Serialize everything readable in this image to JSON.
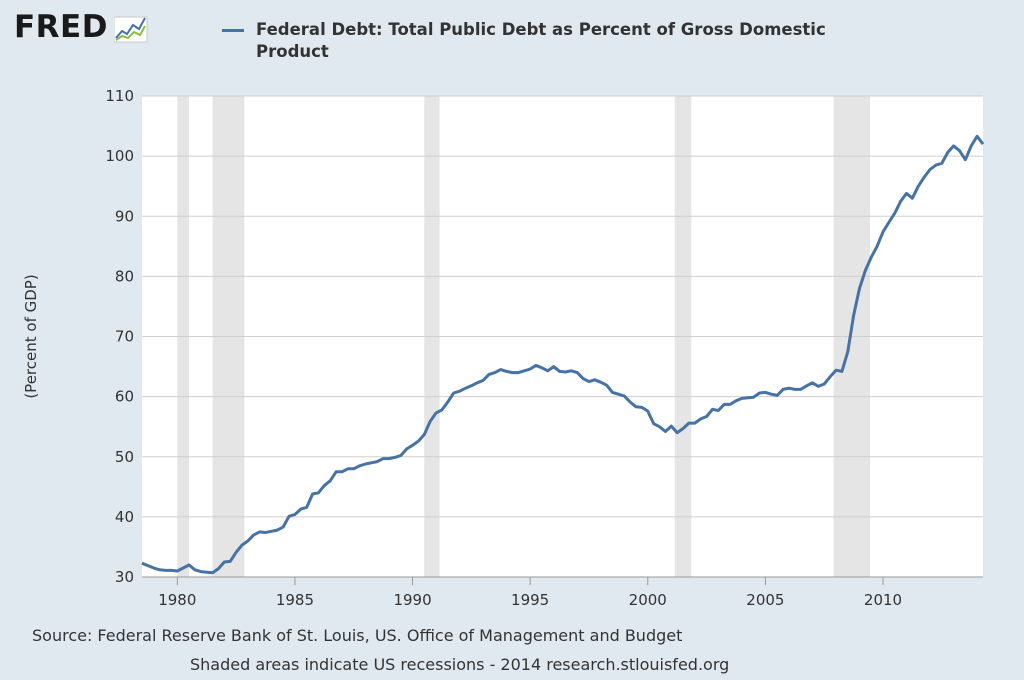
{
  "logo": {
    "text": "FRED",
    "icon": "fred-chart-icon"
  },
  "chart_data": {
    "type": "line",
    "title": "",
    "xlabel": "",
    "ylabel": "(Percent of GDP)",
    "ylim": [
      30,
      110
    ],
    "xlim": [
      1978.5,
      2014.25
    ],
    "yticks": [
      30,
      40,
      50,
      60,
      70,
      80,
      90,
      100,
      110
    ],
    "xticks": [
      1980,
      1985,
      1990,
      1995,
      2000,
      2005,
      2010
    ],
    "grid": "horizontal",
    "legend_position": "top",
    "colors": {
      "line": "#4572a7",
      "recession": "#e5e5e5",
      "plot_bg": "#ffffff",
      "grid": "#cfcfcf"
    },
    "recessions": [
      [
        1980.0,
        1980.5
      ],
      [
        1981.5,
        1982.85
      ],
      [
        1990.5,
        1991.15
      ],
      [
        2001.15,
        2001.85
      ],
      [
        2007.9,
        2009.45
      ]
    ],
    "series": [
      {
        "name": "Federal Debt: Total Public Debt as Percent of Gross Domestic Product",
        "x": [
          1978.5,
          1978.75,
          1979.0,
          1979.25,
          1979.5,
          1979.75,
          1980.0,
          1980.25,
          1980.5,
          1980.75,
          1981.0,
          1981.25,
          1981.5,
          1981.75,
          1982.0,
          1982.25,
          1982.5,
          1982.75,
          1983.0,
          1983.25,
          1983.5,
          1983.75,
          1984.0,
          1984.25,
          1984.5,
          1984.75,
          1985.0,
          1985.25,
          1985.5,
          1985.75,
          1986.0,
          1986.25,
          1986.5,
          1986.75,
          1987.0,
          1987.25,
          1987.5,
          1987.75,
          1988.0,
          1988.25,
          1988.5,
          1988.75,
          1989.0,
          1989.25,
          1989.5,
          1989.75,
          1990.0,
          1990.25,
          1990.5,
          1990.75,
          1991.0,
          1991.25,
          1991.5,
          1991.75,
          1992.0,
          1992.25,
          1992.5,
          1992.75,
          1993.0,
          1993.25,
          1993.5,
          1993.75,
          1994.0,
          1994.25,
          1994.5,
          1994.75,
          1995.0,
          1995.25,
          1995.5,
          1995.75,
          1996.0,
          1996.25,
          1996.5,
          1996.75,
          1997.0,
          1997.25,
          1997.5,
          1997.75,
          1998.0,
          1998.25,
          1998.5,
          1998.75,
          1999.0,
          1999.25,
          1999.5,
          1999.75,
          2000.0,
          2000.25,
          2000.5,
          2000.75,
          2001.0,
          2001.25,
          2001.5,
          2001.75,
          2002.0,
          2002.25,
          2002.5,
          2002.75,
          2003.0,
          2003.25,
          2003.5,
          2003.75,
          2004.0,
          2004.25,
          2004.5,
          2004.75,
          2005.0,
          2005.25,
          2005.5,
          2005.75,
          2006.0,
          2006.25,
          2006.5,
          2006.75,
          2007.0,
          2007.25,
          2007.5,
          2007.75,
          2008.0,
          2008.25,
          2008.5,
          2008.75,
          2009.0,
          2009.25,
          2009.5,
          2009.75,
          2010.0,
          2010.25,
          2010.5,
          2010.75,
          2011.0,
          2011.25,
          2011.5,
          2011.75,
          2012.0,
          2012.25,
          2012.5,
          2012.75,
          2013.0,
          2013.25,
          2013.5,
          2013.75,
          2014.0,
          2014.25
        ],
        "values": [
          32.3,
          31.9,
          31.5,
          31.2,
          31.1,
          31.1,
          31.0,
          31.5,
          32.0,
          31.2,
          30.9,
          30.8,
          30.7,
          31.4,
          32.5,
          32.6,
          34.1,
          35.3,
          36.0,
          37.0,
          37.5,
          37.4,
          37.6,
          37.8,
          38.3,
          40.1,
          40.4,
          41.3,
          41.6,
          43.8,
          44.0,
          45.2,
          46.0,
          47.5,
          47.5,
          48.0,
          48.0,
          48.5,
          48.8,
          49.0,
          49.2,
          49.7,
          49.7,
          49.9,
          50.2,
          51.3,
          51.9,
          52.6,
          53.7,
          55.9,
          57.3,
          57.8,
          59.1,
          60.6,
          60.9,
          61.4,
          61.8,
          62.3,
          62.7,
          63.7,
          64.0,
          64.5,
          64.2,
          64.0,
          64.0,
          64.3,
          64.6,
          65.2,
          64.8,
          64.3,
          65.0,
          64.2,
          64.1,
          64.3,
          64.0,
          63.0,
          62.5,
          62.8,
          62.4,
          61.9,
          60.7,
          60.4,
          60.1,
          59.1,
          58.3,
          58.2,
          57.6,
          55.5,
          55.0,
          54.2,
          55.1,
          54.0,
          54.7,
          55.6,
          55.6,
          56.3,
          56.7,
          57.9,
          57.7,
          58.7,
          58.7,
          59.3,
          59.7,
          59.8,
          59.9,
          60.6,
          60.7,
          60.4,
          60.2,
          61.2,
          61.4,
          61.2,
          61.2,
          61.8,
          62.3,
          61.7,
          62.1,
          63.3,
          64.4,
          64.2,
          67.4,
          73.5,
          78.0,
          81.0,
          83.2,
          85.0,
          87.4,
          89.0,
          90.5,
          92.5,
          93.8,
          93.0,
          95.0,
          96.5,
          97.8,
          98.5,
          98.8,
          100.6,
          101.7,
          100.9,
          99.4,
          101.7,
          103.3,
          102.0
        ]
      }
    ]
  },
  "footer": {
    "source": "Source: Federal Reserve Bank of St. Louis, US. Office of Management and Budget",
    "note": "Shaded areas indicate US recessions - 2014 research.stlouisfed.org"
  }
}
